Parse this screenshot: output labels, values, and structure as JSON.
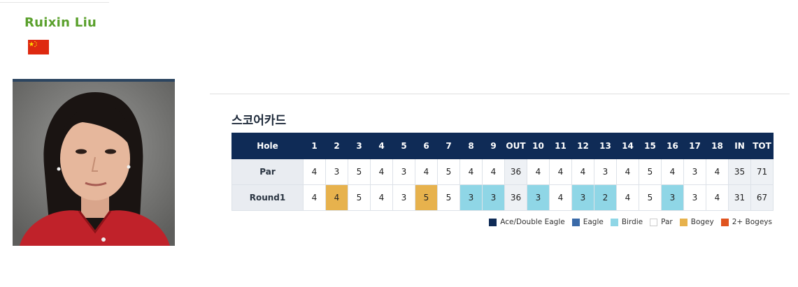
{
  "player": {
    "name": "Ruixin Liu",
    "flag_icon": "china-flag-icon"
  },
  "scorecard": {
    "title": "스코어카드",
    "header": [
      "Hole",
      "1",
      "2",
      "3",
      "4",
      "5",
      "6",
      "7",
      "8",
      "9",
      "OUT",
      "10",
      "11",
      "12",
      "13",
      "14",
      "15",
      "16",
      "17",
      "18",
      "IN",
      "TOT"
    ],
    "rows": [
      {
        "label": "Par",
        "cells": [
          "4",
          "3",
          "5",
          "4",
          "3",
          "4",
          "5",
          "4",
          "4",
          "36",
          "4",
          "4",
          "4",
          "3",
          "4",
          "5",
          "4",
          "3",
          "4",
          "35",
          "71"
        ],
        "results": [
          "",
          "",
          "",
          "",
          "",
          "",
          "",
          "",
          "",
          "",
          "",
          "",
          "",
          "",
          "",
          "",
          "",
          "",
          "",
          "",
          ""
        ]
      },
      {
        "label": "Round1",
        "cells": [
          "4",
          "4",
          "5",
          "4",
          "3",
          "5",
          "5",
          "3",
          "3",
          "36",
          "3",
          "4",
          "3",
          "2",
          "4",
          "5",
          "3",
          "3",
          "4",
          "31",
          "67"
        ],
        "results": [
          "par",
          "bogey",
          "par",
          "par",
          "par",
          "bogey",
          "par",
          "birdie",
          "birdie",
          "",
          "birdie",
          "par",
          "birdie",
          "birdie",
          "par",
          "par",
          "birdie",
          "par",
          "par",
          "",
          ""
        ]
      }
    ]
  },
  "legend": [
    {
      "label": "Ace/Double Eagle",
      "color": "#0f2b56"
    },
    {
      "label": "Eagle",
      "color": "#3a6aa8"
    },
    {
      "label": "Birdie",
      "color": "#8fd6e6"
    },
    {
      "label": "Par",
      "color": "#ffffff"
    },
    {
      "label": "Bogey",
      "color": "#e7b24d"
    },
    {
      "label": "2+ Bogeys",
      "color": "#e0541f"
    }
  ]
}
